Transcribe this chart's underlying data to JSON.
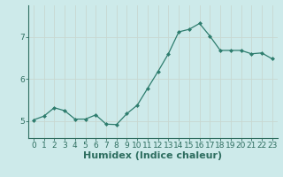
{
  "x": [
    0,
    1,
    2,
    3,
    4,
    5,
    6,
    7,
    8,
    9,
    10,
    11,
    12,
    13,
    14,
    15,
    16,
    17,
    18,
    19,
    20,
    21,
    22,
    23
  ],
  "y": [
    5.03,
    5.12,
    5.32,
    5.25,
    5.05,
    5.05,
    5.15,
    4.93,
    4.92,
    5.18,
    5.38,
    5.78,
    6.18,
    6.6,
    7.12,
    7.18,
    7.32,
    7.02,
    6.68,
    6.68,
    6.68,
    6.6,
    6.62,
    6.48
  ],
  "line_color": "#2e7d6e",
  "marker": "D",
  "marker_size": 2.0,
  "bg_color": "#cdeaea",
  "grid_color": "#b0d8d8",
  "xlabel": "Humidex (Indice chaleur)",
  "ylim": [
    4.6,
    7.75
  ],
  "xlim": [
    -0.5,
    23.5
  ],
  "yticks": [
    5,
    6,
    7
  ],
  "xticks": [
    0,
    1,
    2,
    3,
    4,
    5,
    6,
    7,
    8,
    9,
    10,
    11,
    12,
    13,
    14,
    15,
    16,
    17,
    18,
    19,
    20,
    21,
    22,
    23
  ],
  "tick_labelsize": 6.5,
  "xlabel_fontsize": 8,
  "axis_color": "#2e6e60",
  "spine_color": "#2e6e60"
}
